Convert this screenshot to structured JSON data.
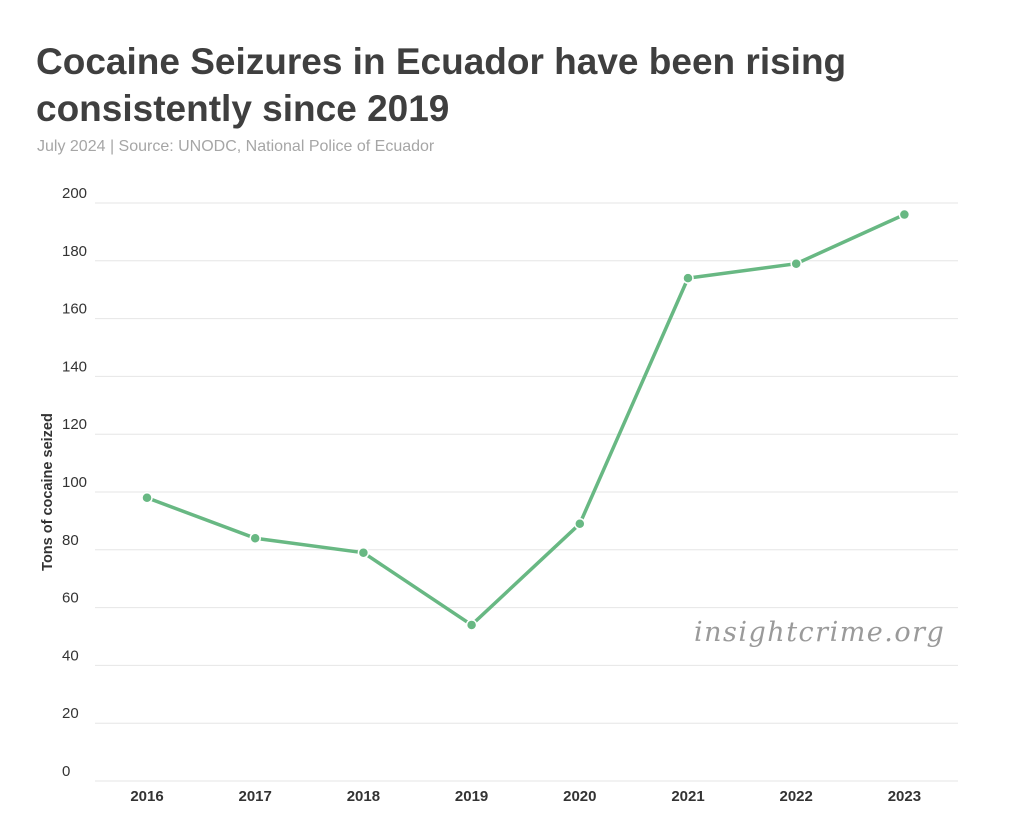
{
  "header": {
    "title": "Cocaine Seizures in Ecuador have been rising consistently since 2019",
    "subtitle": "July 2024 | Source: UNODC, National Police of Ecuador"
  },
  "watermark": "insightcrime.org",
  "colors": {
    "line": "#68b883",
    "grid": "#e6e6e6",
    "title": "#3f3f3f",
    "subtitle": "#a6a6a6"
  },
  "chart_data": {
    "type": "line",
    "title": "Cocaine Seizures in Ecuador have been rising consistently since 2019",
    "subtitle": "July 2024 | Source: UNODC, National Police of Ecuador",
    "xlabel": "",
    "ylabel": "Tons of cocaine seized",
    "categories": [
      "2016",
      "2017",
      "2018",
      "2019",
      "2020",
      "2021",
      "2022",
      "2023"
    ],
    "series": [
      {
        "values": [
          98,
          84,
          79,
          54,
          89,
          174,
          179,
          196
        ]
      }
    ],
    "ylim": [
      0,
      200
    ],
    "yticks": [
      0,
      20,
      40,
      60,
      80,
      100,
      120,
      140,
      160,
      180,
      200
    ],
    "grid": true,
    "legend": "none"
  }
}
